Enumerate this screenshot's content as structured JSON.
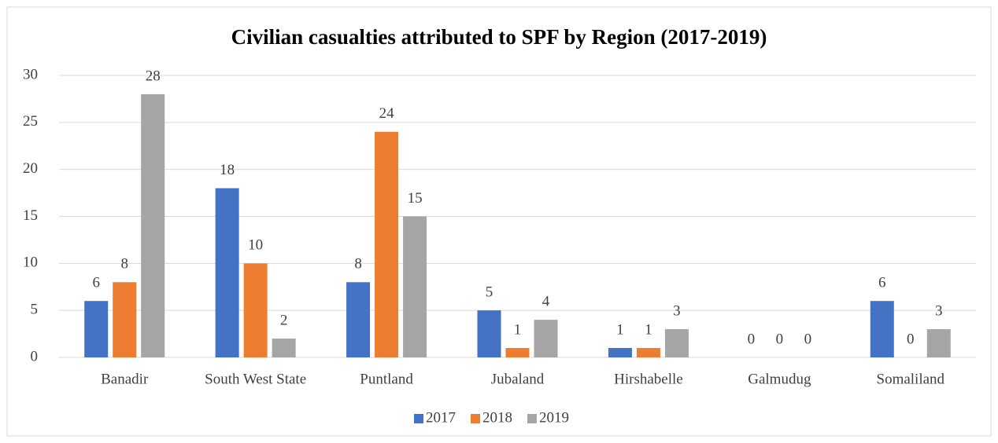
{
  "chart_data": {
    "type": "bar",
    "title": "Civilian casualties attributed to SPF by Region (2017-2019)",
    "categories": [
      "Banadir",
      "South West State",
      "Puntland",
      "Jubaland",
      "Hirshabelle",
      "Galmudug",
      "Somaliland"
    ],
    "series": [
      {
        "name": "2017",
        "color": "#4472c4",
        "values": [
          6,
          18,
          8,
          5,
          1,
          0,
          6
        ]
      },
      {
        "name": "2018",
        "color": "#ed7d31",
        "values": [
          8,
          10,
          24,
          1,
          1,
          0,
          0
        ]
      },
      {
        "name": "2019",
        "color": "#a5a5a5",
        "values": [
          28,
          2,
          15,
          4,
          3,
          0,
          3
        ]
      }
    ],
    "ylim": [
      0,
      30
    ],
    "yticks": [
      0,
      5,
      10,
      15,
      20,
      25,
      30
    ],
    "grid": true,
    "legend": "bottom"
  }
}
